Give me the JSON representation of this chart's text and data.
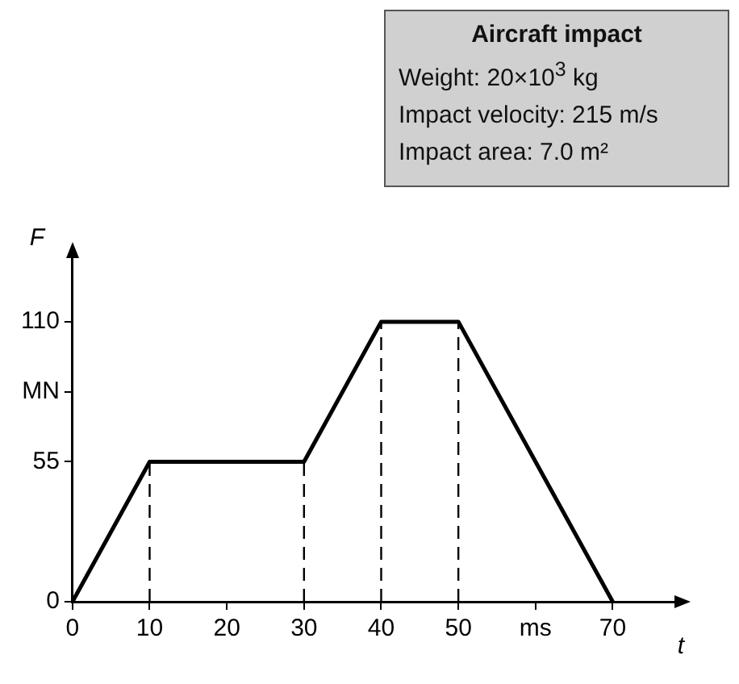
{
  "chart_data": {
    "type": "line",
    "title": "Aircraft impact",
    "annotations": [
      "Weight: 20×10$^{3}$ kg",
      "Impact velocity: 215 m/s",
      "Impact area: 7.0 m²"
    ],
    "xlabel": "t",
    "ylabel": "F",
    "x": [
      0,
      10,
      30,
      40,
      50,
      70
    ],
    "series": [
      {
        "color": "#000000",
        "values": [
          0,
          55,
          55,
          110,
          110,
          0
        ]
      }
    ],
    "xlim": [
      0,
      78
    ],
    "ylim": [
      0,
      135
    ],
    "xticks": [
      0,
      10,
      20,
      30,
      40,
      50,
      {
        "value": 60,
        "label": "ms"
      },
      70
    ],
    "yticks": [
      0,
      55,
      {
        "value": 82.5,
        "label": "MN"
      },
      110
    ],
    "ref_lines": [
      {
        "axis": "x",
        "value": 10,
        "line_style": "dashed"
      },
      {
        "axis": "x",
        "value": 30,
        "line_style": "dashed"
      },
      {
        "axis": "x",
        "value": 40,
        "line_style": "dashed"
      },
      {
        "axis": "x",
        "value": 50,
        "line_style": "dashed"
      }
    ],
    "grid": false,
    "legend": false,
    "marker": "none",
    "line_style": "solid"
  }
}
